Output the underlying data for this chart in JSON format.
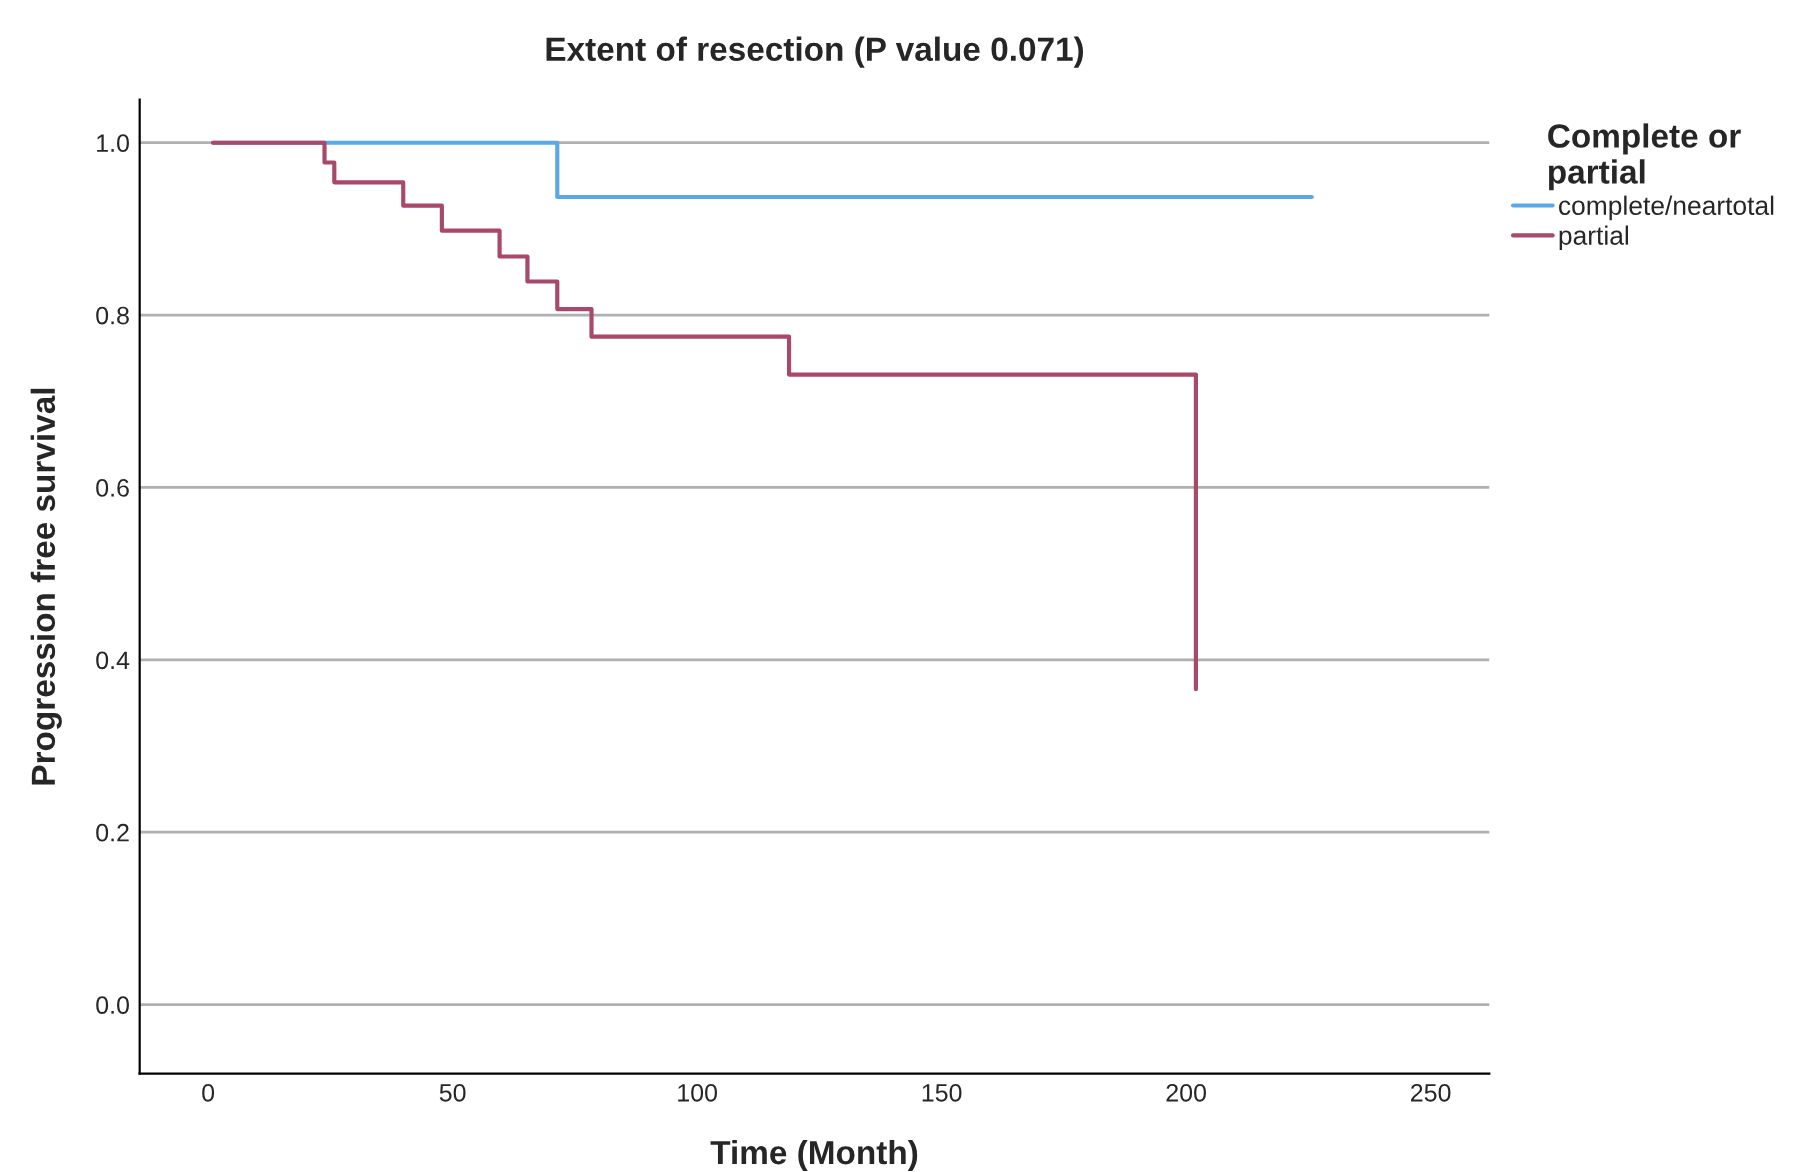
{
  "chart_data": {
    "type": "step",
    "title": "Extent of resection (P value 0.071)",
    "xlabel": "Time (Month)",
    "ylabel": "Progression free survival",
    "legend_title": "Complete or\npartial",
    "series": [
      {
        "name": "complete/neartotal",
        "color": "#5aa9e6",
        "x": [
          1,
          71.4,
          225.7
        ],
        "values": [
          1.0,
          0.937,
          0.937
        ]
      },
      {
        "name": "partial",
        "color": "#a8486a",
        "x": [
          1,
          23.8,
          25.8,
          39.9,
          47.8,
          59.6,
          65.3,
          71.4,
          78.4,
          118.8,
          202,
          202
        ],
        "values": [
          1.0,
          0.977,
          0.954,
          0.927,
          0.898,
          0.868,
          0.839,
          0.807,
          0.775,
          0.731,
          0.731,
          0.366
        ]
      }
    ],
    "xlim": [
      -14,
      262
    ],
    "ylim": [
      -0.08,
      1.05
    ],
    "xticks": [
      0,
      50,
      100,
      150,
      200,
      250
    ],
    "yticks": [
      {
        "value": 0,
        "label": "0.0"
      },
      {
        "value": 0.2,
        "label": "0.2"
      },
      {
        "value": 0.4,
        "label": "0.4"
      },
      {
        "value": 0.6,
        "label": "0.6"
      },
      {
        "value": 0.8,
        "label": "0.8"
      },
      {
        "value": 1,
        "label": "1.0"
      }
    ],
    "grid": "y",
    "legend": "top right"
  }
}
